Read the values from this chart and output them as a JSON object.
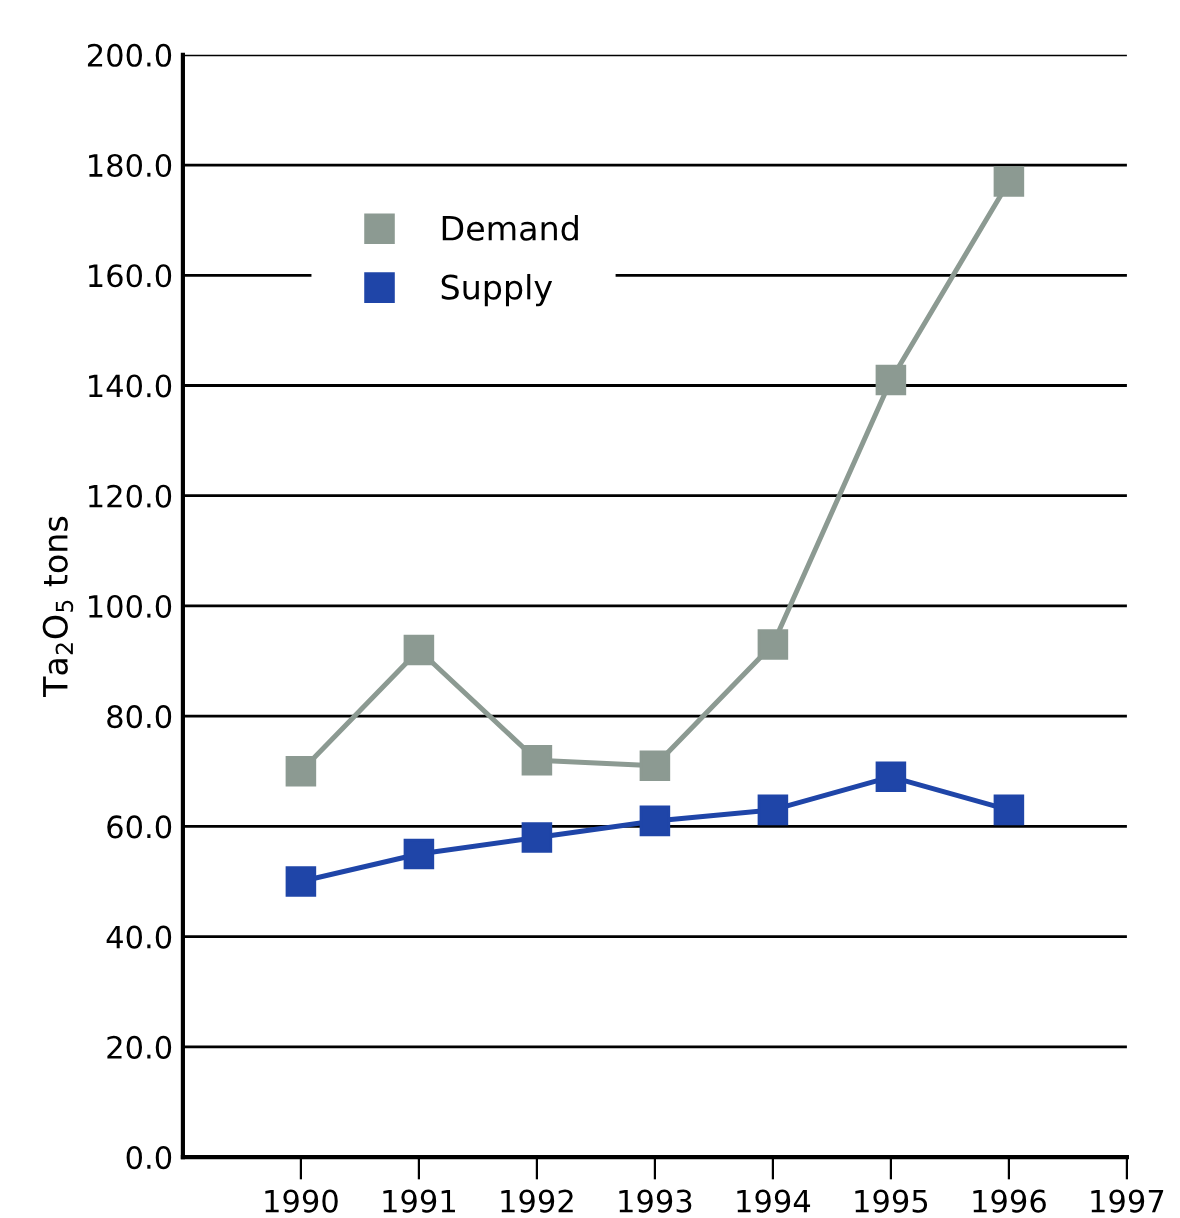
{
  "chart_data": {
    "type": "line",
    "ylabel": "Ta$_{2}$O$_{5}$ tons",
    "x": [
      1990,
      1991,
      1992,
      1993,
      1994,
      1995,
      1996
    ],
    "series": [
      {
        "name": "Demand",
        "color": "#8c9a92",
        "values": [
          70,
          92,
          72,
          71,
          93,
          141,
          177
        ]
      },
      {
        "name": "Supply",
        "color": "#1f45a8",
        "values": [
          50,
          55,
          58,
          61,
          63,
          69,
          63
        ]
      }
    ],
    "xlim": [
      1989,
      1997
    ],
    "xticks": [
      1990,
      1991,
      1992,
      1993,
      1994,
      1995,
      1996,
      1997
    ],
    "ylim": [
      0,
      200
    ],
    "yticks": [
      {
        "value": 0,
        "label": "0.0"
      },
      {
        "value": 20,
        "label": "20.0"
      },
      {
        "value": 40,
        "label": "40.0"
      },
      {
        "value": 60,
        "label": "60.0"
      },
      {
        "value": 80,
        "label": "80.0"
      },
      {
        "value": 100,
        "label": "100.0"
      },
      {
        "value": 120,
        "label": "120.0"
      },
      {
        "value": 140,
        "label": "140.0"
      },
      {
        "value": 160,
        "label": "160.0"
      },
      {
        "value": 180,
        "label": "180.0"
      },
      {
        "value": 200,
        "label": "200.0"
      }
    ],
    "grid": "y",
    "legend": "top left",
    "marker": "square",
    "line_style": "solid"
  }
}
